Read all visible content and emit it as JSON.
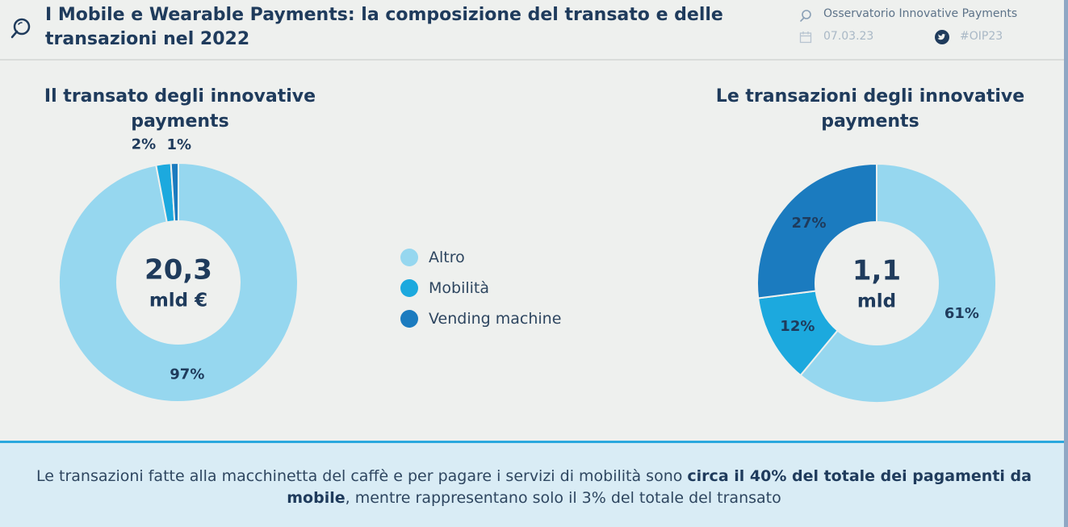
{
  "header": {
    "title": "I Mobile e Wearable Payments: la composizione del transato e delle transazioni nel 2022",
    "brand": "Osservatorio Innovative Payments",
    "date": "07.03.23",
    "hashtag": "#OIP23"
  },
  "colors": {
    "altro": "#96d7ef",
    "mobilita": "#1ca9de",
    "vending": "#1b7bbf",
    "dark_text": "#1f3b5c"
  },
  "chart_data": [
    {
      "type": "pie",
      "variant": "donut",
      "title": "Il transato degli innovative payments",
      "center_value": "20,3",
      "center_unit": "mld €",
      "categories": [
        "Altro",
        "Mobilità",
        "Vending machine"
      ],
      "values": [
        97,
        2,
        1
      ],
      "labels": [
        "97%",
        "2%",
        "1%"
      ]
    },
    {
      "type": "pie",
      "variant": "donut",
      "title": "Le transazioni degli innovative payments",
      "center_value": "1,1",
      "center_unit": "mld",
      "categories": [
        "Altro",
        "Mobilità",
        "Vending machine"
      ],
      "values": [
        61,
        12,
        27
      ],
      "labels": [
        "61%",
        "12%",
        "27%"
      ]
    }
  ],
  "legend": [
    {
      "label": "Altro",
      "color": "#96d7ef"
    },
    {
      "label": "Mobilità",
      "color": "#1ca9de"
    },
    {
      "label": "Vending machine",
      "color": "#1b7bbf"
    }
  ],
  "footer": {
    "part1": "Le transazioni fatte alla macchinetta del caffè e per pagare i servizi di mobilità sono ",
    "bold": "circa il 40% del totale dei pagamenti da mobile",
    "part2": ", mentre rappresentano solo il 3% del totale del transato"
  }
}
